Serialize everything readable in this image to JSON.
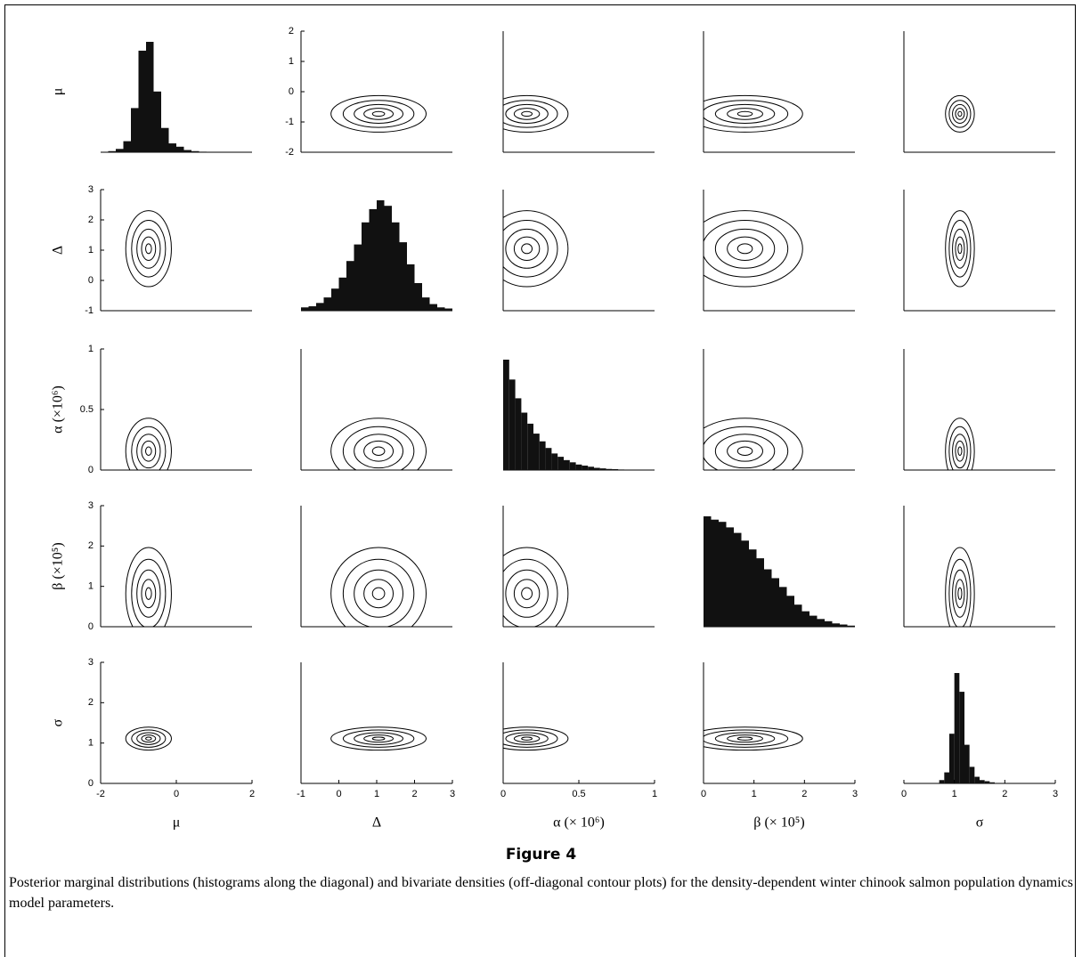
{
  "chart_data": {
    "type": "pairs",
    "variables": [
      {
        "name": "μ",
        "xlabel": "μ",
        "lim": [
          -2,
          2
        ],
        "ticks": [
          -2,
          -1,
          0,
          1,
          2
        ],
        "xticks": [
          -2,
          0,
          2
        ],
        "hist": {
          "bins": [
            -1.8,
            -1.6,
            -1.4,
            -1.2,
            -1.0,
            -0.8,
            -0.6,
            -0.4,
            -0.2,
            0,
            0.2,
            0.4,
            0.6,
            0.8
          ],
          "values": [
            0.01,
            0.03,
            0.1,
            0.4,
            0.92,
            1.0,
            0.55,
            0.22,
            0.08,
            0.05,
            0.02,
            0.01,
            0.005
          ]
        }
      },
      {
        "name": "Δ",
        "xlabel": "Δ",
        "lim": [
          -1,
          3
        ],
        "ticks": [
          -1,
          0,
          1,
          2,
          3
        ],
        "xticks": [
          -1,
          0,
          1,
          2,
          3
        ],
        "hist": {
          "bins": [
            -1.0,
            -0.8,
            -0.6,
            -0.4,
            -0.2,
            0,
            0.2,
            0.4,
            0.6,
            0.8,
            1.0,
            1.2,
            1.4,
            1.6,
            1.8,
            2.0,
            2.2,
            2.4,
            2.6,
            2.8,
            3.0
          ],
          "values": [
            0.03,
            0.04,
            0.07,
            0.12,
            0.2,
            0.3,
            0.45,
            0.6,
            0.8,
            0.92,
            1.0,
            0.95,
            0.8,
            0.62,
            0.42,
            0.25,
            0.12,
            0.06,
            0.03,
            0.02
          ]
        }
      },
      {
        "name": "α (×10⁶)",
        "xlabel": "α (× 10⁶)",
        "lim": [
          0,
          1
        ],
        "ticks": [
          0,
          0.5,
          1
        ],
        "xticks": [
          0,
          0.5,
          1
        ],
        "hist": {
          "bins": [
            0,
            0.04,
            0.08,
            0.12,
            0.16,
            0.2,
            0.24,
            0.28,
            0.32,
            0.36,
            0.4,
            0.44,
            0.48,
            0.52,
            0.56,
            0.6,
            0.64,
            0.68,
            0.72,
            0.76,
            0.8
          ],
          "values": [
            1.0,
            0.82,
            0.65,
            0.52,
            0.42,
            0.33,
            0.26,
            0.2,
            0.15,
            0.12,
            0.09,
            0.07,
            0.05,
            0.04,
            0.03,
            0.02,
            0.015,
            0.01,
            0.008,
            0.005
          ]
        }
      },
      {
        "name": "β (×10⁵)",
        "xlabel": "β (× 10⁵)",
        "lim": [
          0,
          3
        ],
        "ticks": [
          0,
          1,
          2,
          3
        ],
        "xticks": [
          0,
          1,
          2,
          3
        ],
        "hist": {
          "bins": [
            0,
            0.15,
            0.3,
            0.45,
            0.6,
            0.75,
            0.9,
            1.05,
            1.2,
            1.35,
            1.5,
            1.65,
            1.8,
            1.95,
            2.1,
            2.25,
            2.4,
            2.55,
            2.7,
            2.85,
            3.0
          ],
          "values": [
            1.0,
            0.97,
            0.95,
            0.9,
            0.85,
            0.78,
            0.7,
            0.62,
            0.52,
            0.44,
            0.36,
            0.28,
            0.2,
            0.14,
            0.1,
            0.07,
            0.05,
            0.03,
            0.02,
            0.01
          ]
        }
      },
      {
        "name": "σ",
        "xlabel": "σ",
        "lim": [
          0,
          3
        ],
        "ticks": [
          0,
          1,
          2,
          3
        ],
        "xticks": [
          0,
          1,
          2,
          3
        ],
        "hist": {
          "bins": [
            0.7,
            0.8,
            0.9,
            1.0,
            1.1,
            1.2,
            1.3,
            1.4,
            1.5,
            1.6,
            1.7,
            1.8
          ],
          "values": [
            0.03,
            0.1,
            0.45,
            1.0,
            0.83,
            0.35,
            0.15,
            0.06,
            0.03,
            0.02,
            0.01
          ]
        }
      }
    ],
    "figure_label": "Figure 4",
    "caption": "Posterior marginal distributions (histograms along the diagonal) and bivariate densities (off-diagonal contour plots) for the density-dependent winter chinook salmon population dynamics model parameters."
  }
}
